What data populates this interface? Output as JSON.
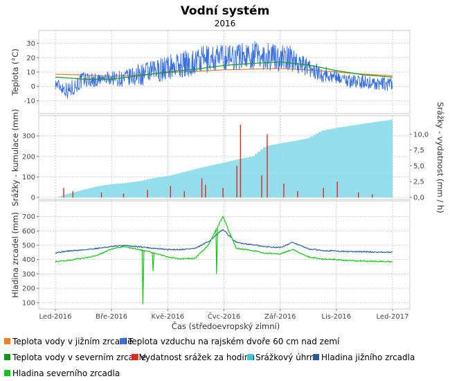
{
  "chart_data": {
    "type": "line",
    "title": "Vodní systém",
    "subtitle": "2016",
    "xlabel": "Čas (středoevropský zimní)",
    "x_ticks": [
      "Led-2016",
      "Bře-2016",
      "Kvě-2016",
      "Čvc-2016",
      "Zář-2016",
      "Lis-2016",
      "Led-2017"
    ],
    "x_range": [
      "2016-01-01",
      "2017-01-01"
    ],
    "panels": [
      {
        "ylabel": "Teplota (°C)",
        "ylim": [
          -17,
          37
        ],
        "y_ticks": [
          -10,
          0,
          10,
          20,
          30
        ],
        "grid": true,
        "series": [
          {
            "name": "Teplota vody v jižním zrcadle",
            "color": "#f07f1e",
            "x": [
              "2016-01-01",
              "2016-02-01",
              "2016-03-01",
              "2016-04-01",
              "2016-05-01",
              "2016-06-01",
              "2016-07-01",
              "2016-08-01",
              "2016-09-01",
              "2016-10-01",
              "2016-11-01",
              "2016-12-01",
              "2017-01-01"
            ],
            "y": [
              8.5,
              8.0,
              7.0,
              8.0,
              9.5,
              10.5,
              11.5,
              12.0,
              12.5,
              11.5,
              10.0,
              8.5,
              7.5
            ]
          },
          {
            "name": "Teplota vzduchu na rajském dvoře 60 cm nad zemí",
            "color": "#3a6fe0",
            "x": [
              "2016-01-01",
              "2016-01-15",
              "2016-02-01",
              "2016-02-15",
              "2016-03-01",
              "2016-03-15",
              "2016-04-01",
              "2016-04-15",
              "2016-05-01",
              "2016-05-15",
              "2016-06-01",
              "2016-06-15",
              "2016-07-01",
              "2016-07-15",
              "2016-08-01",
              "2016-08-15",
              "2016-09-01",
              "2016-09-15",
              "2016-10-01",
              "2016-10-15",
              "2016-11-01",
              "2016-11-15",
              "2016-12-01",
              "2016-12-15",
              "2017-01-01"
            ],
            "y": [
              2,
              -3,
              5,
              4,
              6,
              5,
              8,
              10,
              13,
              15,
              17,
              19,
              20,
              21,
              22,
              21,
              20,
              19,
              13,
              9,
              7,
              4,
              3,
              2,
              1
            ],
            "amplitude": [
              4,
              6,
              6,
              5,
              5,
              6,
              8,
              8,
              9,
              9,
              10,
              10,
              10,
              10,
              10,
              10,
              10,
              9,
              6,
              6,
              5,
              5,
              5,
              5,
              5
            ]
          },
          {
            "name": "Teplota vody v severním zrcadle",
            "color": "#0f9618",
            "x": [
              "2016-01-01",
              "2016-02-01",
              "2016-03-01",
              "2016-04-01",
              "2016-05-01",
              "2016-06-01",
              "2016-07-01",
              "2016-08-01",
              "2016-09-01",
              "2016-10-01",
              "2016-11-01",
              "2016-12-01",
              "2017-01-01"
            ],
            "y": [
              6.5,
              5.0,
              5.0,
              7.5,
              10.0,
              12.0,
              14.5,
              16.0,
              17.0,
              15.0,
              11.0,
              8.0,
              6.5
            ]
          }
        ]
      },
      {
        "ylabel": "Srážky - kumulace (mm)",
        "ylabel_right": "Srážky - vydatnost (mm / h)",
        "ylim": [
          0,
          385
        ],
        "y_ticks": [
          0,
          100,
          200,
          300
        ],
        "ylim_right": [
          0,
          12.5
        ],
        "y_ticks_right": [
          "0,0",
          "2,5",
          "5,0",
          "7,5",
          "10,0"
        ],
        "grid": true,
        "series": [
          {
            "name": "Vydatnost srážek za hodinu",
            "color": "#e8251c",
            "axis": "right",
            "x": [
              "2016-01-10",
              "2016-01-20",
              "2016-02-20",
              "2016-03-15",
              "2016-04-10",
              "2016-05-05",
              "2016-05-20",
              "2016-06-08",
              "2016-06-12",
              "2016-07-01",
              "2016-07-16",
              "2016-07-20",
              "2016-08-12",
              "2016-08-18",
              "2016-09-05",
              "2016-09-20",
              "2016-10-18",
              "2016-11-02",
              "2016-11-25",
              "2016-12-10"
            ],
            "y": [
              1.5,
              1.0,
              0.8,
              0.6,
              1.2,
              1.8,
              1.0,
              3.0,
              2.0,
              1.5,
              5.0,
              11.5,
              3.5,
              10.0,
              2.2,
              1.0,
              1.5,
              2.5,
              0.8,
              0.5
            ]
          },
          {
            "name": "Srážkový úhrn",
            "color": "#88dce9",
            "axis": "left",
            "x": [
              "2016-01-01",
              "2016-01-15",
              "2016-02-01",
              "2016-02-15",
              "2016-03-01",
              "2016-03-15",
              "2016-04-01",
              "2016-04-15",
              "2016-05-01",
              "2016-05-15",
              "2016-06-01",
              "2016-06-15",
              "2016-07-01",
              "2016-07-15",
              "2016-08-01",
              "2016-08-15",
              "2016-09-01",
              "2016-09-15",
              "2016-10-01",
              "2016-10-15",
              "2016-11-01",
              "2016-11-15",
              "2016-12-01",
              "2016-12-15",
              "2017-01-01"
            ],
            "y": [
              0,
              20,
              40,
              55,
              65,
              70,
              80,
              95,
              105,
              120,
              140,
              155,
              170,
              185,
              200,
              250,
              265,
              275,
              290,
              325,
              340,
              350,
              360,
              370,
              380
            ]
          }
        ]
      },
      {
        "ylabel": "Hladina zrcadel (mm)",
        "ylim": [
          75,
          790
        ],
        "y_ticks": [
          100,
          200,
          300,
          400,
          500,
          600,
          700
        ],
        "grid": true,
        "series": [
          {
            "name": "Hladina jižního zrcadla",
            "color": "#285c9c",
            "x": [
              "2016-01-01",
              "2016-01-15",
              "2016-02-01",
              "2016-02-15",
              "2016-03-01",
              "2016-03-15",
              "2016-04-01",
              "2016-04-15",
              "2016-05-01",
              "2016-05-15",
              "2016-06-01",
              "2016-06-15",
              "2016-07-01",
              "2016-07-15",
              "2016-08-01",
              "2016-08-15",
              "2016-09-01",
              "2016-09-15",
              "2016-10-01",
              "2016-10-15",
              "2016-11-01",
              "2016-11-15",
              "2016-12-01",
              "2016-12-15",
              "2017-01-01"
            ],
            "y": [
              448,
              460,
              468,
              478,
              490,
              498,
              490,
              480,
              470,
              470,
              478,
              525,
              610,
              520,
              505,
              490,
              485,
              520,
              475,
              465,
              460,
              455,
              455,
              452,
              450
            ]
          },
          {
            "name": "Hladina severního zrcadla",
            "color": "#13c415",
            "x": [
              "2016-01-01",
              "2016-01-15",
              "2016-02-01",
              "2016-02-15",
              "2016-03-01",
              "2016-03-15",
              "2016-04-01",
              "2016-04-15",
              "2016-05-01",
              "2016-05-15",
              "2016-06-01",
              "2016-06-15",
              "2016-07-01",
              "2016-07-15",
              "2016-08-01",
              "2016-08-15",
              "2016-09-01",
              "2016-09-15",
              "2016-10-01",
              "2016-10-15",
              "2016-11-01",
              "2016-11-15",
              "2016-12-01",
              "2016-12-15",
              "2017-01-01"
            ],
            "y": [
              385,
              395,
              410,
              430,
              470,
              490,
              470,
              450,
              420,
              405,
              410,
              500,
              700,
              480,
              465,
              445,
              440,
              470,
              420,
              405,
              400,
              392,
              390,
              388,
              385
            ],
            "dips": [
              {
                "x": "2016-04-05",
                "y": 90
              },
              {
                "x": "2016-04-16",
                "y": 320
              },
              {
                "x": "2016-06-24",
                "y": 300
              }
            ]
          }
        ]
      }
    ],
    "legend": {
      "position": "bottom",
      "entries": [
        {
          "label": "Teplota vody v jižním zrcadle",
          "color": "#f07f1e"
        },
        {
          "label": "Teplota vzduchu na rajském dvoře 60 cm nad zemí",
          "color": "#3a6fe0"
        },
        {
          "label": "Teplota vody v severním zrcadle",
          "color": "#0f9618"
        },
        {
          "label": "Vydatnost srážek za hodinu",
          "color": "#e8251c"
        },
        {
          "label": "Srážkový úhrn",
          "color": "#3fc6dc"
        },
        {
          "label": "Hladina jižního zrcadla",
          "color": "#285c9c"
        },
        {
          "label": "Hladina severního zrcadla",
          "color": "#13c415"
        }
      ]
    }
  }
}
